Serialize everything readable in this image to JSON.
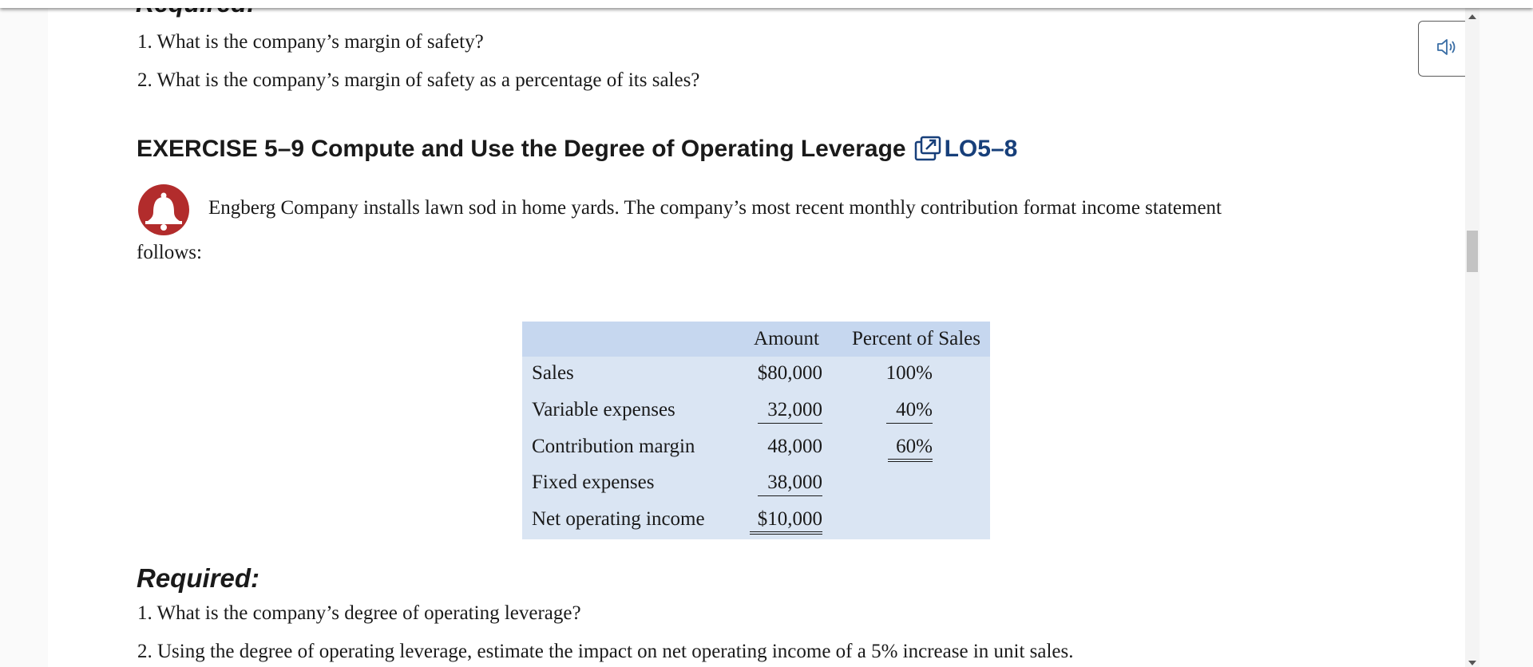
{
  "previous": {
    "heading": "Required:",
    "questions": [
      "1. What is the company’s margin of safety?",
      "2. What is the company’s margin of safety as a percentage of its sales?"
    ]
  },
  "exercise": {
    "title": "EXERCISE 5–9 Compute and Use the Degree of Operating Leverage",
    "lo_link": "LO5–8",
    "intro_line1": "Engberg Company installs lawn sod in home yards. The company’s most recent monthly contribution format income statement",
    "intro_line2": "follows:"
  },
  "statement": {
    "col_amount": "Amount",
    "col_percent": "Percent of Sales",
    "rows": [
      {
        "label": "Sales",
        "amount": "$80,000",
        "percent": "100%"
      },
      {
        "label": "Variable expenses",
        "amount": "32,000",
        "percent": "40%"
      },
      {
        "label": "Contribution margin",
        "amount": "48,000",
        "percent": "60%"
      },
      {
        "label": "Fixed expenses",
        "amount": "38,000",
        "percent": ""
      },
      {
        "label": "Net operating income",
        "amount": "$10,000",
        "percent": ""
      }
    ]
  },
  "required": {
    "heading": "Required:",
    "questions": [
      "1. What is the company’s degree of operating leverage?",
      "2. Using the degree of operating leverage, estimate the impact on net operating income of a 5% increase in unit sales."
    ]
  },
  "icons": {
    "speaker": "speaker-icon",
    "bell": "bell-icon",
    "external_link": "external-link-icon"
  },
  "colors": {
    "link": "#173f7a",
    "bell": "#b22c2c",
    "table_header": "#c6d7ef",
    "table_body": "#dae5f3"
  }
}
